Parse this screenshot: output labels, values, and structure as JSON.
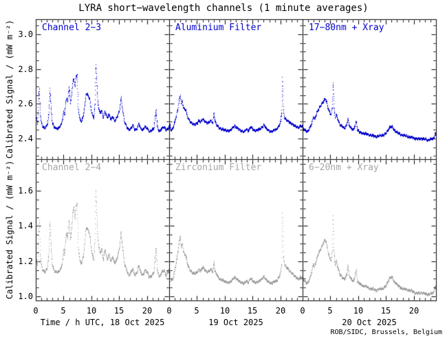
{
  "title": "LYRA short−wavelength channels (1 minute averages)",
  "footer": "ROB/SIDC, Brussels, Belgium",
  "y_axis_title": "Calibrated Signal / (mW m⁻²)",
  "colors": {
    "series_top": "#0000CC",
    "series_bottom": "#9E9E9E",
    "label_bottom": "#A6A6A6",
    "axis": "#000000",
    "background": "#FFFFFF"
  },
  "chart_data": {
    "type": "scatter",
    "title": "LYRA short−wavelength channels (1 minute averages)",
    "x_unit": "hour of day, UTC",
    "x_range": [
      0,
      24
    ],
    "x_ticks_major": [
      0,
      5,
      10,
      15,
      20
    ],
    "x_minor_step_hours": 1,
    "grid": "off",
    "columns": [
      {
        "date": "18 Oct 2025",
        "xlabel": "Time / h UTC, 18 Oct 2025"
      },
      {
        "date": "19 Oct 2025",
        "xlabel": "19 Oct 2025"
      },
      {
        "date": "20 Oct 2025",
        "xlabel": "20 Oct 2025"
      }
    ],
    "rows": [
      {
        "ylabel": "Calibrated Signal / (mW m⁻²)",
        "ylim": [
          2.281,
          3.087
        ],
        "yticks": [
          2.4,
          2.6,
          2.8,
          3.0
        ],
        "y_minor_step": 0.05,
        "color": "#0000CC",
        "series_index": 1,
        "panels": [
          {
            "label": "Channel 2−3"
          },
          {
            "label": "Aluminium Filter"
          },
          {
            "label": "17−80nm + Xray"
          }
        ]
      },
      {
        "ylabel": "Calibrated Signal / (mW m⁻²)",
        "ylim": [
          0.977,
          1.779
        ],
        "yticks": [
          1.0,
          1.2,
          1.4,
          1.6
        ],
        "y_minor_step": 0.05,
        "color": "#9E9E9E",
        "series_index": 2,
        "panels": [
          {
            "label": "Channel 2−4"
          },
          {
            "label": "Zirconium Filter"
          },
          {
            "label": "6−20nm + Xray"
          }
        ]
      }
    ],
    "points_format": "[hour, top_row_value, bottom_row_value]",
    "points": {
      "day0": [
        [
          0.0,
          2.52,
          1.21
        ],
        [
          0.3,
          2.49,
          1.18
        ],
        [
          0.45,
          2.63,
          1.35
        ],
        [
          0.6,
          2.69,
          1.43
        ],
        [
          0.75,
          2.55,
          1.25
        ],
        [
          0.9,
          2.5,
          1.19
        ],
        [
          1.2,
          2.47,
          1.15
        ],
        [
          1.6,
          2.46,
          1.14
        ],
        [
          2.0,
          2.48,
          1.16
        ],
        [
          2.3,
          2.54,
          1.24
        ],
        [
          2.5,
          2.69,
          1.43
        ],
        [
          2.7,
          2.58,
          1.29
        ],
        [
          2.9,
          2.5,
          1.19
        ],
        [
          3.2,
          2.47,
          1.15
        ],
        [
          3.6,
          2.46,
          1.14
        ],
        [
          4.0,
          2.46,
          1.14
        ],
        [
          4.5,
          2.48,
          1.16
        ],
        [
          4.8,
          2.52,
          1.21
        ],
        [
          5.0,
          2.56,
          1.27
        ],
        [
          5.15,
          2.54,
          1.24
        ],
        [
          5.3,
          2.6,
          1.32
        ],
        [
          5.55,
          2.64,
          1.37
        ],
        [
          5.7,
          2.61,
          1.33
        ],
        [
          5.95,
          2.7,
          1.44
        ],
        [
          6.2,
          2.6,
          1.32
        ],
        [
          6.4,
          2.66,
          1.39
        ],
        [
          6.6,
          2.72,
          1.47
        ],
        [
          6.8,
          2.75,
          1.51
        ],
        [
          7.0,
          2.7,
          1.44
        ],
        [
          7.2,
          2.76,
          1.52
        ],
        [
          7.4,
          2.77,
          1.53
        ],
        [
          7.6,
          2.57,
          1.28
        ],
        [
          7.9,
          2.51,
          1.2
        ],
        [
          8.2,
          2.5,
          1.19
        ],
        [
          8.5,
          2.53,
          1.23
        ],
        [
          8.8,
          2.6,
          1.32
        ],
        [
          9.0,
          2.66,
          1.39
        ],
        [
          9.4,
          2.65,
          1.38
        ],
        [
          9.7,
          2.62,
          1.34
        ],
        [
          10.0,
          2.55,
          1.25
        ],
        [
          10.4,
          2.52,
          1.21
        ],
        [
          10.6,
          2.6,
          1.32
        ],
        [
          10.75,
          2.83,
          1.61
        ],
        [
          10.95,
          2.7,
          1.44
        ],
        [
          11.1,
          2.62,
          1.34
        ],
        [
          11.3,
          2.57,
          1.28
        ],
        [
          11.5,
          2.55,
          1.25
        ],
        [
          11.8,
          2.56,
          1.27
        ],
        [
          12.1,
          2.52,
          1.21
        ],
        [
          12.4,
          2.56,
          1.27
        ],
        [
          12.8,
          2.52,
          1.21
        ],
        [
          13.1,
          2.54,
          1.24
        ],
        [
          13.5,
          2.51,
          1.2
        ],
        [
          13.8,
          2.53,
          1.23
        ],
        [
          14.1,
          2.5,
          1.19
        ],
        [
          14.5,
          2.52,
          1.21
        ],
        [
          15.0,
          2.56,
          1.27
        ],
        [
          15.3,
          2.64,
          1.37
        ],
        [
          15.6,
          2.56,
          1.27
        ],
        [
          15.9,
          2.5,
          1.19
        ],
        [
          16.3,
          2.47,
          1.15
        ],
        [
          16.7,
          2.45,
          1.12
        ],
        [
          17.1,
          2.46,
          1.14
        ],
        [
          17.4,
          2.48,
          1.16
        ],
        [
          17.8,
          2.45,
          1.12
        ],
        [
          18.2,
          2.46,
          1.14
        ],
        [
          18.5,
          2.49,
          1.18
        ],
        [
          18.8,
          2.46,
          1.14
        ],
        [
          19.2,
          2.45,
          1.12
        ],
        [
          19.6,
          2.47,
          1.15
        ],
        [
          20.0,
          2.46,
          1.14
        ],
        [
          20.4,
          2.44,
          1.11
        ],
        [
          20.8,
          2.45,
          1.12
        ],
        [
          21.2,
          2.46,
          1.14
        ],
        [
          21.6,
          2.57,
          1.28
        ],
        [
          21.8,
          2.47,
          1.15
        ],
        [
          22.2,
          2.44,
          1.11
        ],
        [
          22.6,
          2.46,
          1.14
        ],
        [
          23.0,
          2.47,
          1.15
        ],
        [
          23.4,
          2.45,
          1.12
        ],
        [
          23.7,
          2.46,
          1.14
        ],
        [
          24.0,
          2.47,
          1.15
        ]
      ],
      "day1": [
        [
          0.0,
          2.48,
          1.135
        ],
        [
          0.3,
          2.45,
          1.09
        ],
        [
          0.6,
          2.46,
          1.1
        ],
        [
          0.9,
          2.49,
          1.14
        ],
        [
          1.2,
          2.53,
          1.19
        ],
        [
          1.5,
          2.57,
          1.25
        ],
        [
          1.8,
          2.63,
          1.32
        ],
        [
          1.95,
          2.65,
          1.345
        ],
        [
          2.1,
          2.6,
          1.28
        ],
        [
          2.3,
          2.62,
          1.3
        ],
        [
          2.5,
          2.58,
          1.26
        ],
        [
          2.7,
          2.57,
          1.24
        ],
        [
          2.9,
          2.57,
          1.24
        ],
        [
          3.2,
          2.53,
          1.19
        ],
        [
          3.6,
          2.505,
          1.155
        ],
        [
          4.0,
          2.49,
          1.14
        ],
        [
          4.5,
          2.48,
          1.13
        ],
        [
          5.0,
          2.49,
          1.14
        ],
        [
          5.3,
          2.505,
          1.155
        ],
        [
          5.6,
          2.495,
          1.145
        ],
        [
          6.0,
          2.515,
          1.17
        ],
        [
          6.4,
          2.5,
          1.15
        ],
        [
          6.8,
          2.49,
          1.14
        ],
        [
          7.1,
          2.495,
          1.145
        ],
        [
          7.5,
          2.505,
          1.155
        ],
        [
          7.8,
          2.49,
          1.14
        ],
        [
          8.0,
          2.555,
          1.2
        ],
        [
          8.2,
          2.5,
          1.145
        ],
        [
          8.6,
          2.475,
          1.12
        ],
        [
          9.0,
          2.46,
          1.1
        ],
        [
          9.5,
          2.455,
          1.095
        ],
        [
          10.0,
          2.45,
          1.085
        ],
        [
          10.5,
          2.445,
          1.08
        ],
        [
          11.0,
          2.45,
          1.085
        ],
        [
          11.4,
          2.465,
          1.1
        ],
        [
          11.7,
          2.475,
          1.11
        ],
        [
          12.1,
          2.465,
          1.1
        ],
        [
          12.5,
          2.455,
          1.09
        ],
        [
          12.9,
          2.445,
          1.08
        ],
        [
          13.4,
          2.44,
          1.075
        ],
        [
          13.8,
          2.455,
          1.09
        ],
        [
          14.2,
          2.445,
          1.08
        ],
        [
          14.6,
          2.47,
          1.105
        ],
        [
          15.0,
          2.455,
          1.09
        ],
        [
          15.4,
          2.445,
          1.08
        ],
        [
          15.8,
          2.45,
          1.085
        ],
        [
          16.2,
          2.455,
          1.09
        ],
        [
          16.6,
          2.465,
          1.1
        ],
        [
          17.0,
          2.48,
          1.115
        ],
        [
          17.4,
          2.46,
          1.095
        ],
        [
          17.8,
          2.45,
          1.085
        ],
        [
          18.3,
          2.44,
          1.075
        ],
        [
          18.8,
          2.45,
          1.085
        ],
        [
          19.3,
          2.455,
          1.09
        ],
        [
          19.7,
          2.475,
          1.11
        ],
        [
          20.0,
          2.5,
          1.14
        ],
        [
          20.2,
          2.55,
          1.19
        ],
        [
          20.35,
          2.75,
          1.48
        ],
        [
          20.5,
          2.56,
          1.23
        ],
        [
          20.7,
          2.52,
          1.18
        ],
        [
          21.0,
          2.51,
          1.17
        ],
        [
          21.4,
          2.5,
          1.155
        ],
        [
          21.8,
          2.49,
          1.14
        ],
        [
          22.3,
          2.48,
          1.125
        ],
        [
          22.8,
          2.47,
          1.11
        ],
        [
          23.2,
          2.465,
          1.1
        ],
        [
          23.6,
          2.475,
          1.11
        ],
        [
          24.0,
          2.47,
          1.105
        ]
      ],
      "day2": [
        [
          0.0,
          2.46,
          1.1
        ],
        [
          0.4,
          2.45,
          1.085
        ],
        [
          0.8,
          2.44,
          1.075
        ],
        [
          1.2,
          2.46,
          1.1
        ],
        [
          1.6,
          2.49,
          1.14
        ],
        [
          1.9,
          2.53,
          1.19
        ],
        [
          2.1,
          2.51,
          1.165
        ],
        [
          2.4,
          2.54,
          1.205
        ],
        [
          2.8,
          2.57,
          1.245
        ],
        [
          3.2,
          2.59,
          1.27
        ],
        [
          3.6,
          2.61,
          1.3
        ],
        [
          4.0,
          2.63,
          1.325
        ],
        [
          4.2,
          2.62,
          1.31
        ],
        [
          4.5,
          2.58,
          1.26
        ],
        [
          4.8,
          2.55,
          1.22
        ],
        [
          5.1,
          2.54,
          1.205
        ],
        [
          5.3,
          2.58,
          1.26
        ],
        [
          5.45,
          2.73,
          1.46
        ],
        [
          5.6,
          2.58,
          1.26
        ],
        [
          5.8,
          2.52,
          1.18
        ],
        [
          6.0,
          2.54,
          1.205
        ],
        [
          6.3,
          2.51,
          1.165
        ],
        [
          6.7,
          2.48,
          1.125
        ],
        [
          7.1,
          2.47,
          1.11
        ],
        [
          7.5,
          2.46,
          1.1
        ],
        [
          7.9,
          2.48,
          1.125
        ],
        [
          8.1,
          2.52,
          1.18
        ],
        [
          8.3,
          2.48,
          1.125
        ],
        [
          8.7,
          2.46,
          1.1
        ],
        [
          9.1,
          2.45,
          1.085
        ],
        [
          9.6,
          2.5,
          1.15
        ],
        [
          9.8,
          2.45,
          1.085
        ],
        [
          10.2,
          2.44,
          1.075
        ],
        [
          10.8,
          2.43,
          1.06
        ],
        [
          11.4,
          2.43,
          1.06
        ],
        [
          12.0,
          2.42,
          1.045
        ],
        [
          12.6,
          2.42,
          1.045
        ],
        [
          13.2,
          2.41,
          1.035
        ],
        [
          13.8,
          2.42,
          1.045
        ],
        [
          14.4,
          2.42,
          1.045
        ],
        [
          14.9,
          2.43,
          1.06
        ],
        [
          15.3,
          2.45,
          1.085
        ],
        [
          15.7,
          2.47,
          1.11
        ],
        [
          16.1,
          2.47,
          1.11
        ],
        [
          16.4,
          2.45,
          1.085
        ],
        [
          16.8,
          2.44,
          1.075
        ],
        [
          17.3,
          2.43,
          1.06
        ],
        [
          17.8,
          2.42,
          1.045
        ],
        [
          18.4,
          2.42,
          1.045
        ],
        [
          19.0,
          2.41,
          1.035
        ],
        [
          19.6,
          2.41,
          1.035
        ],
        [
          20.2,
          2.4,
          1.02
        ],
        [
          20.8,
          2.4,
          1.02
        ],
        [
          21.4,
          2.4,
          1.02
        ],
        [
          22.0,
          2.4,
          1.02
        ],
        [
          22.5,
          2.39,
          1.01
        ],
        [
          23.0,
          2.4,
          1.02
        ],
        [
          23.5,
          2.4,
          1.02
        ],
        [
          23.8,
          2.43,
          1.06
        ],
        [
          24.0,
          2.42,
          1.045
        ]
      ]
    }
  }
}
